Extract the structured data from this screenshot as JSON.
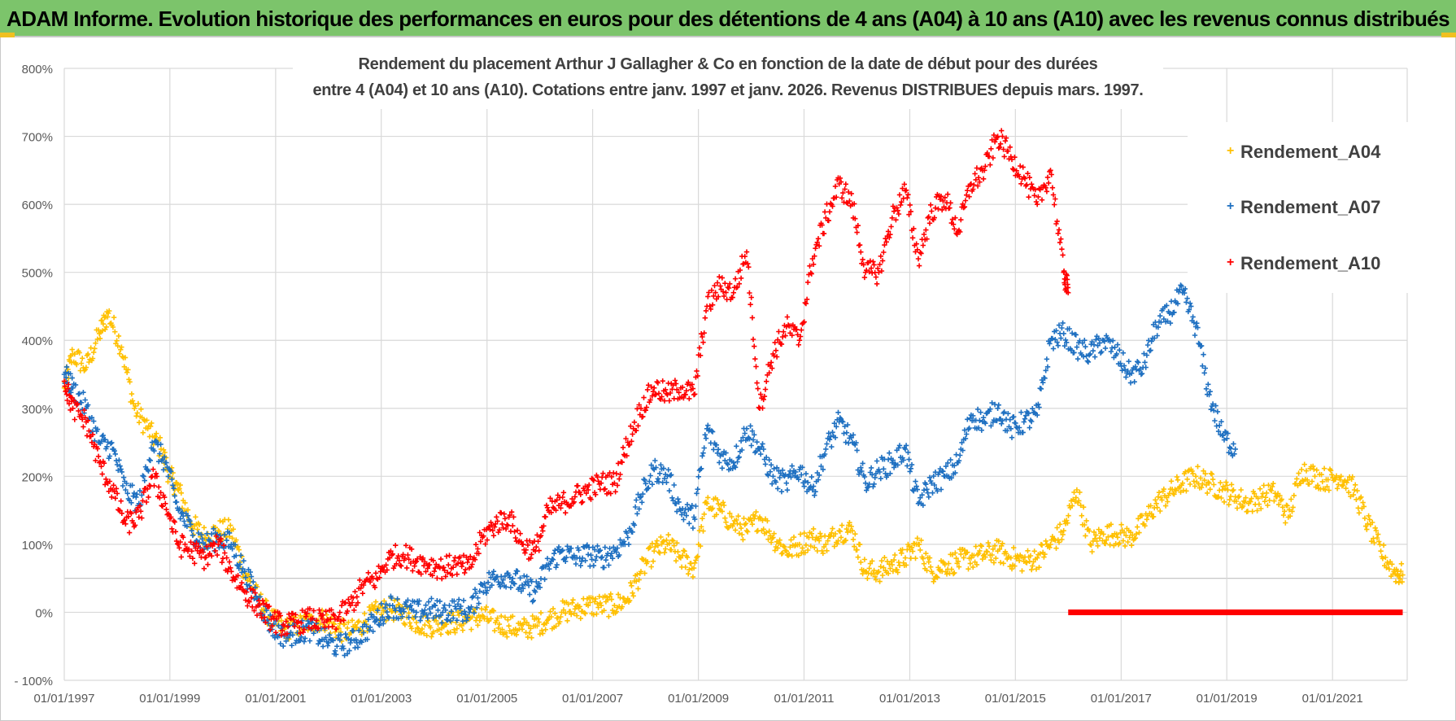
{
  "banner": {
    "title": "ADAM Informe. Evolution historique des performances en euros pour des détentions de 4 ans (A04) à 10 ans (A10) avec les revenus connus distribués"
  },
  "chart_data": {
    "type": "scatter",
    "title_line1": "Rendement du placement Arthur J Gallagher & Co en fonction de la date de début pour des durées",
    "title_line2": "entre 4 (A04) et 10 ans (A10).  Cotations entre janv. 1997 et janv. 2026. Revenus DISTRIBUES depuis mars. 1997.",
    "x_axis": {
      "range": [
        "1997-01-01",
        "2022-06-01"
      ],
      "ticks": [
        "01/01/1997",
        "01/01/1999",
        "01/01/2001",
        "01/01/2003",
        "01/01/2005",
        "01/01/2007",
        "01/01/2009",
        "01/01/2011",
        "01/01/2013",
        "01/01/2015",
        "01/01/2017",
        "01/01/2019",
        "01/01/2021"
      ]
    },
    "y_axis": {
      "range": [
        -100,
        800
      ],
      "ticks": [
        "800%",
        "700%",
        "600%",
        "500%",
        "400%",
        "300%",
        "200%",
        "100%",
        "0%",
        "- 100%"
      ],
      "unit": "%"
    },
    "grid": true,
    "legend_position": "top-right",
    "series": [
      {
        "name": "Rendement_A04",
        "color": "#ffc000",
        "points": [
          [
            "1997-01-01",
            330
          ],
          [
            "1997-03-01",
            380
          ],
          [
            "1997-06-01",
            360
          ],
          [
            "1997-09-01",
            410
          ],
          [
            "1997-11-01",
            440
          ],
          [
            "1998-02-01",
            390
          ],
          [
            "1998-05-01",
            300
          ],
          [
            "1998-08-01",
            270
          ],
          [
            "1998-11-01",
            240
          ],
          [
            "1999-01-01",
            200
          ],
          [
            "1999-03-01",
            180
          ],
          [
            "1999-06-01",
            130
          ],
          [
            "1999-09-01",
            110
          ],
          [
            "1999-12-01",
            120
          ],
          [
            "2000-03-01",
            120
          ],
          [
            "2000-06-01",
            60
          ],
          [
            "2000-09-01",
            20
          ],
          [
            "2000-12-01",
            -10
          ],
          [
            "2001-03-01",
            -25
          ],
          [
            "2001-06-01",
            -20
          ],
          [
            "2001-09-01",
            -15
          ],
          [
            "2001-12-01",
            -10
          ],
          [
            "2002-03-01",
            -25
          ],
          [
            "2002-06-01",
            -30
          ],
          [
            "2002-09-01",
            -15
          ],
          [
            "2002-12-01",
            0
          ],
          [
            "2003-03-01",
            5
          ],
          [
            "2003-06-01",
            0
          ],
          [
            "2003-09-01",
            -15
          ],
          [
            "2003-12-01",
            -20
          ],
          [
            "2004-03-01",
            -15
          ],
          [
            "2004-06-01",
            -15
          ],
          [
            "2004-09-01",
            -10
          ],
          [
            "2004-12-01",
            -5
          ],
          [
            "2005-03-01",
            -15
          ],
          [
            "2005-06-01",
            -20
          ],
          [
            "2005-09-01",
            -25
          ],
          [
            "2005-12-01",
            -20
          ],
          [
            "2006-03-01",
            -10
          ],
          [
            "2006-06-01",
            0
          ],
          [
            "2006-09-01",
            5
          ],
          [
            "2006-12-01",
            10
          ],
          [
            "2007-03-01",
            10
          ],
          [
            "2007-06-01",
            10
          ],
          [
            "2007-09-01",
            20
          ],
          [
            "2007-12-01",
            60
          ],
          [
            "2008-03-01",
            90
          ],
          [
            "2008-06-01",
            100
          ],
          [
            "2008-09-01",
            80
          ],
          [
            "2008-12-01",
            65
          ],
          [
            "2009-03-01",
            160
          ],
          [
            "2009-06-01",
            150
          ],
          [
            "2009-09-01",
            130
          ],
          [
            "2009-12-01",
            120
          ],
          [
            "2010-03-01",
            140
          ],
          [
            "2010-06-01",
            110
          ],
          [
            "2010-09-01",
            90
          ],
          [
            "2010-12-01",
            100
          ],
          [
            "2011-03-01",
            110
          ],
          [
            "2011-06-01",
            100
          ],
          [
            "2011-09-01",
            120
          ],
          [
            "2011-12-01",
            120
          ],
          [
            "2012-03-01",
            60
          ],
          [
            "2012-06-01",
            60
          ],
          [
            "2012-09-01",
            70
          ],
          [
            "2012-12-01",
            80
          ],
          [
            "2013-03-01",
            100
          ],
          [
            "2013-06-01",
            60
          ],
          [
            "2013-09-01",
            70
          ],
          [
            "2013-12-01",
            75
          ],
          [
            "2014-03-01",
            80
          ],
          [
            "2014-06-01",
            85
          ],
          [
            "2014-09-01",
            90
          ],
          [
            "2014-12-01",
            80
          ],
          [
            "2015-03-01",
            75
          ],
          [
            "2015-06-01",
            80
          ],
          [
            "2015-09-01",
            100
          ],
          [
            "2015-12-01",
            120
          ],
          [
            "2016-03-01",
            180
          ],
          [
            "2016-06-01",
            100
          ],
          [
            "2016-09-01",
            115
          ],
          [
            "2016-12-01",
            115
          ],
          [
            "2017-03-01",
            110
          ],
          [
            "2017-06-01",
            130
          ],
          [
            "2017-09-01",
            160
          ],
          [
            "2017-12-01",
            175
          ],
          [
            "2018-03-01",
            190
          ],
          [
            "2018-06-01",
            200
          ],
          [
            "2018-09-01",
            190
          ],
          [
            "2018-12-01",
            180
          ],
          [
            "2019-03-01",
            170
          ],
          [
            "2019-06-01",
            160
          ],
          [
            "2019-09-01",
            170
          ],
          [
            "2019-12-01",
            175
          ],
          [
            "2020-03-01",
            140
          ],
          [
            "2020-06-01",
            210
          ],
          [
            "2020-09-01",
            200
          ],
          [
            "2020-12-01",
            195
          ],
          [
            "2021-03-01",
            200
          ],
          [
            "2021-06-01",
            180
          ],
          [
            "2021-09-01",
            130
          ],
          [
            "2021-12-01",
            90
          ],
          [
            "2022-03-01",
            60
          ],
          [
            "2022-05-01",
            55
          ]
        ]
      },
      {
        "name": "Rendement_A07",
        "color": "#1f70c1",
        "points": [
          [
            "1997-01-01",
            350
          ],
          [
            "1997-03-01",
            330
          ],
          [
            "1997-06-01",
            300
          ],
          [
            "1997-09-01",
            250
          ],
          [
            "1997-12-01",
            240
          ],
          [
            "1998-03-01",
            180
          ],
          [
            "1998-06-01",
            160
          ],
          [
            "1998-09-01",
            250
          ],
          [
            "1998-12-01",
            220
          ],
          [
            "1999-03-01",
            150
          ],
          [
            "1999-06-01",
            120
          ],
          [
            "1999-09-01",
            100
          ],
          [
            "1999-12-01",
            110
          ],
          [
            "2000-03-01",
            100
          ],
          [
            "2000-06-01",
            60
          ],
          [
            "2000-09-01",
            20
          ],
          [
            "2000-12-01",
            -20
          ],
          [
            "2001-03-01",
            -35
          ],
          [
            "2001-06-01",
            -30
          ],
          [
            "2001-09-01",
            -25
          ],
          [
            "2001-12-01",
            -40
          ],
          [
            "2002-03-01",
            -50
          ],
          [
            "2002-06-01",
            -45
          ],
          [
            "2002-09-01",
            -30
          ],
          [
            "2002-12-01",
            -10
          ],
          [
            "2003-03-01",
            10
          ],
          [
            "2003-06-01",
            5
          ],
          [
            "2003-09-01",
            0
          ],
          [
            "2003-12-01",
            5
          ],
          [
            "2004-03-01",
            0
          ],
          [
            "2004-06-01",
            5
          ],
          [
            "2004-09-01",
            0
          ],
          [
            "2004-12-01",
            40
          ],
          [
            "2005-03-01",
            50
          ],
          [
            "2005-06-01",
            55
          ],
          [
            "2005-09-01",
            40
          ],
          [
            "2005-12-01",
            30
          ],
          [
            "2006-03-01",
            70
          ],
          [
            "2006-06-01",
            90
          ],
          [
            "2006-09-01",
            80
          ],
          [
            "2006-12-01",
            85
          ],
          [
            "2007-03-01",
            80
          ],
          [
            "2007-06-01",
            90
          ],
          [
            "2007-09-01",
            110
          ],
          [
            "2007-12-01",
            170
          ],
          [
            "2008-03-01",
            210
          ],
          [
            "2008-06-01",
            200
          ],
          [
            "2008-09-01",
            150
          ],
          [
            "2008-12-01",
            140
          ],
          [
            "2009-03-01",
            270
          ],
          [
            "2009-06-01",
            230
          ],
          [
            "2009-09-01",
            220
          ],
          [
            "2009-12-01",
            270
          ],
          [
            "2010-03-01",
            240
          ],
          [
            "2010-06-01",
            200
          ],
          [
            "2010-09-01",
            190
          ],
          [
            "2010-12-01",
            210
          ],
          [
            "2011-03-01",
            180
          ],
          [
            "2011-06-01",
            240
          ],
          [
            "2011-09-01",
            280
          ],
          [
            "2011-12-01",
            250
          ],
          [
            "2012-03-01",
            190
          ],
          [
            "2012-06-01",
            210
          ],
          [
            "2012-09-01",
            220
          ],
          [
            "2012-12-01",
            240
          ],
          [
            "2013-03-01",
            160
          ],
          [
            "2013-06-01",
            190
          ],
          [
            "2013-09-01",
            200
          ],
          [
            "2013-12-01",
            220
          ],
          [
            "2014-03-01",
            290
          ],
          [
            "2014-06-01",
            280
          ],
          [
            "2014-09-01",
            300
          ],
          [
            "2014-12-01",
            270
          ],
          [
            "2015-03-01",
            280
          ],
          [
            "2015-06-01",
            290
          ],
          [
            "2015-09-01",
            400
          ],
          [
            "2015-12-01",
            410
          ],
          [
            "2016-03-01",
            390
          ],
          [
            "2016-06-01",
            380
          ],
          [
            "2016-09-01",
            400
          ],
          [
            "2016-12-01",
            380
          ],
          [
            "2017-03-01",
            350
          ],
          [
            "2017-06-01",
            360
          ],
          [
            "2017-09-01",
            420
          ],
          [
            "2017-12-01",
            440
          ],
          [
            "2018-03-01",
            470
          ],
          [
            "2018-06-01",
            420
          ],
          [
            "2018-09-01",
            320
          ],
          [
            "2018-12-01",
            260
          ],
          [
            "2019-03-01",
            240
          ]
        ]
      },
      {
        "name": "Rendement_A10",
        "color": "#ff0000",
        "points": [
          [
            "1997-01-01",
            340
          ],
          [
            "1997-03-01",
            300
          ],
          [
            "1997-06-01",
            280
          ],
          [
            "1997-09-01",
            220
          ],
          [
            "1997-12-01",
            180
          ],
          [
            "1998-03-01",
            130
          ],
          [
            "1998-06-01",
            140
          ],
          [
            "1998-09-01",
            200
          ],
          [
            "1998-12-01",
            160
          ],
          [
            "1999-03-01",
            100
          ],
          [
            "1999-06-01",
            90
          ],
          [
            "1999-09-01",
            80
          ],
          [
            "1999-12-01",
            100
          ],
          [
            "2000-03-01",
            60
          ],
          [
            "2000-06-01",
            30
          ],
          [
            "2000-09-01",
            10
          ],
          [
            "2000-12-01",
            -10
          ],
          [
            "2001-03-01",
            -20
          ],
          [
            "2001-06-01",
            -15
          ],
          [
            "2001-09-01",
            -10
          ],
          [
            "2001-12-01",
            -15
          ],
          [
            "2002-03-01",
            -10
          ],
          [
            "2002-06-01",
            10
          ],
          [
            "2002-09-01",
            40
          ],
          [
            "2002-12-01",
            50
          ],
          [
            "2003-03-01",
            80
          ],
          [
            "2003-06-01",
            85
          ],
          [
            "2003-09-01",
            75
          ],
          [
            "2003-12-01",
            70
          ],
          [
            "2004-03-01",
            65
          ],
          [
            "2004-06-01",
            70
          ],
          [
            "2004-09-01",
            65
          ],
          [
            "2004-12-01",
            110
          ],
          [
            "2005-03-01",
            130
          ],
          [
            "2005-06-01",
            140
          ],
          [
            "2005-09-01",
            100
          ],
          [
            "2005-12-01",
            90
          ],
          [
            "2006-03-01",
            150
          ],
          [
            "2006-06-01",
            160
          ],
          [
            "2006-09-01",
            170
          ],
          [
            "2006-12-01",
            180
          ],
          [
            "2007-03-01",
            190
          ],
          [
            "2007-06-01",
            190
          ],
          [
            "2007-09-01",
            250
          ],
          [
            "2007-12-01",
            300
          ],
          [
            "2008-03-01",
            330
          ],
          [
            "2008-06-01",
            320
          ],
          [
            "2008-09-01",
            330
          ],
          [
            "2008-12-01",
            320
          ],
          [
            "2009-03-01",
            450
          ],
          [
            "2009-06-01",
            480
          ],
          [
            "2009-09-01",
            470
          ],
          [
            "2009-12-01",
            530
          ],
          [
            "2010-03-01",
            300
          ],
          [
            "2010-06-01",
            380
          ],
          [
            "2010-09-01",
            420
          ],
          [
            "2010-12-01",
            400
          ],
          [
            "2011-03-01",
            520
          ],
          [
            "2011-06-01",
            580
          ],
          [
            "2011-09-01",
            630
          ],
          [
            "2011-12-01",
            600
          ],
          [
            "2012-03-01",
            500
          ],
          [
            "2012-06-01",
            500
          ],
          [
            "2012-09-01",
            580
          ],
          [
            "2012-12-01",
            620
          ],
          [
            "2013-03-01",
            520
          ],
          [
            "2013-06-01",
            590
          ],
          [
            "2013-09-01",
            610
          ],
          [
            "2013-12-01",
            560
          ],
          [
            "2014-03-01",
            630
          ],
          [
            "2014-06-01",
            650
          ],
          [
            "2014-09-01",
            700
          ],
          [
            "2014-12-01",
            670
          ],
          [
            "2015-03-01",
            640
          ],
          [
            "2015-06-01",
            600
          ],
          [
            "2015-09-01",
            650
          ],
          [
            "2015-12-01",
            500
          ],
          [
            "2016-01-01",
            470
          ]
        ],
        "flat_segment": {
          "from": "2016-01-01",
          "to": "2022-05-01",
          "value": 0
        }
      }
    ]
  }
}
